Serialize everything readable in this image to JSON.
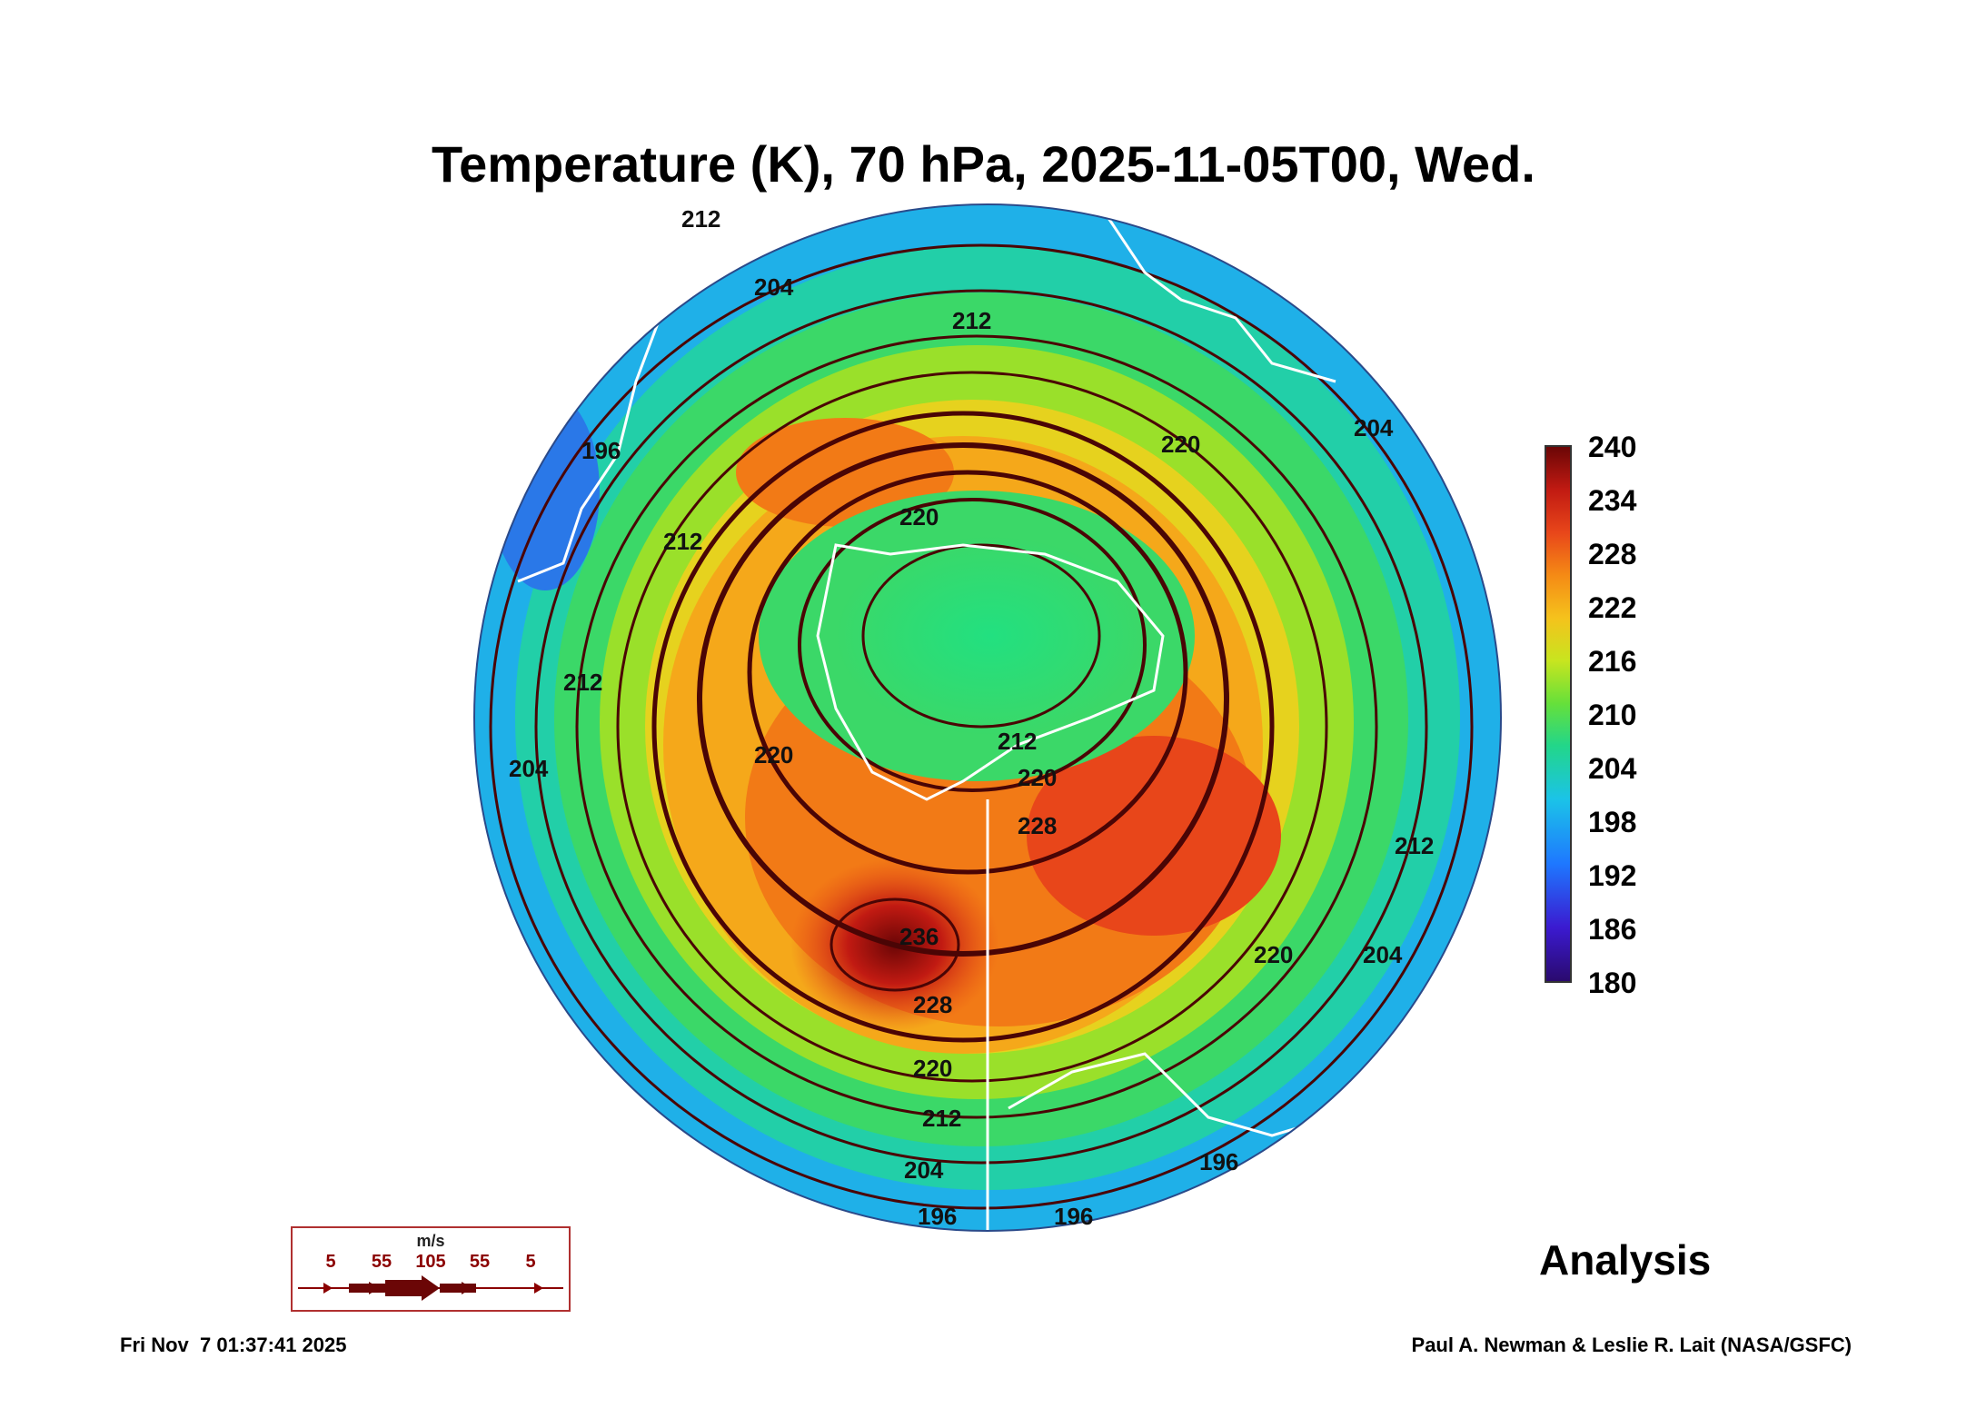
{
  "title": "Temperature (K), 70 hPa, 2025-11-05T00, Wed.",
  "colorbar": {
    "unit": "K",
    "ticks": [
      "240",
      "234",
      "228",
      "222",
      "216",
      "210",
      "204",
      "198",
      "192",
      "186",
      "180"
    ]
  },
  "contour_labels": [
    {
      "text": "212"
    },
    {
      "text": "220"
    },
    {
      "text": "220"
    },
    {
      "text": "204"
    },
    {
      "text": "196"
    },
    {
      "text": "212"
    },
    {
      "text": "212"
    },
    {
      "text": "204"
    },
    {
      "text": "220"
    },
    {
      "text": "212"
    },
    {
      "text": "220"
    },
    {
      "text": "228"
    },
    {
      "text": "236"
    },
    {
      "text": "228"
    },
    {
      "text": "220"
    },
    {
      "text": "212"
    },
    {
      "text": "204"
    },
    {
      "text": "196"
    },
    {
      "text": "196"
    },
    {
      "text": "196"
    },
    {
      "text": "220"
    },
    {
      "text": "204"
    },
    {
      "text": "212"
    },
    {
      "text": "204"
    },
    {
      "text": "212"
    }
  ],
  "wind_legend": {
    "unit": "m/s",
    "speeds": [
      "5",
      "55",
      "105",
      "55",
      "5"
    ]
  },
  "analysis_label": "Analysis",
  "footer": {
    "timestamp": "Fri Nov  7 01:37:41 2025",
    "credit": "Paul A. Newman & Leslie R. Lait (NASA/GSFC)"
  },
  "colors": {
    "cold": "#1e78ff",
    "mid": "#22d68a",
    "warm": "#f58a15",
    "hot": "#6b0606",
    "streamline": "#6b0606",
    "coastline": "#ffffff"
  }
}
